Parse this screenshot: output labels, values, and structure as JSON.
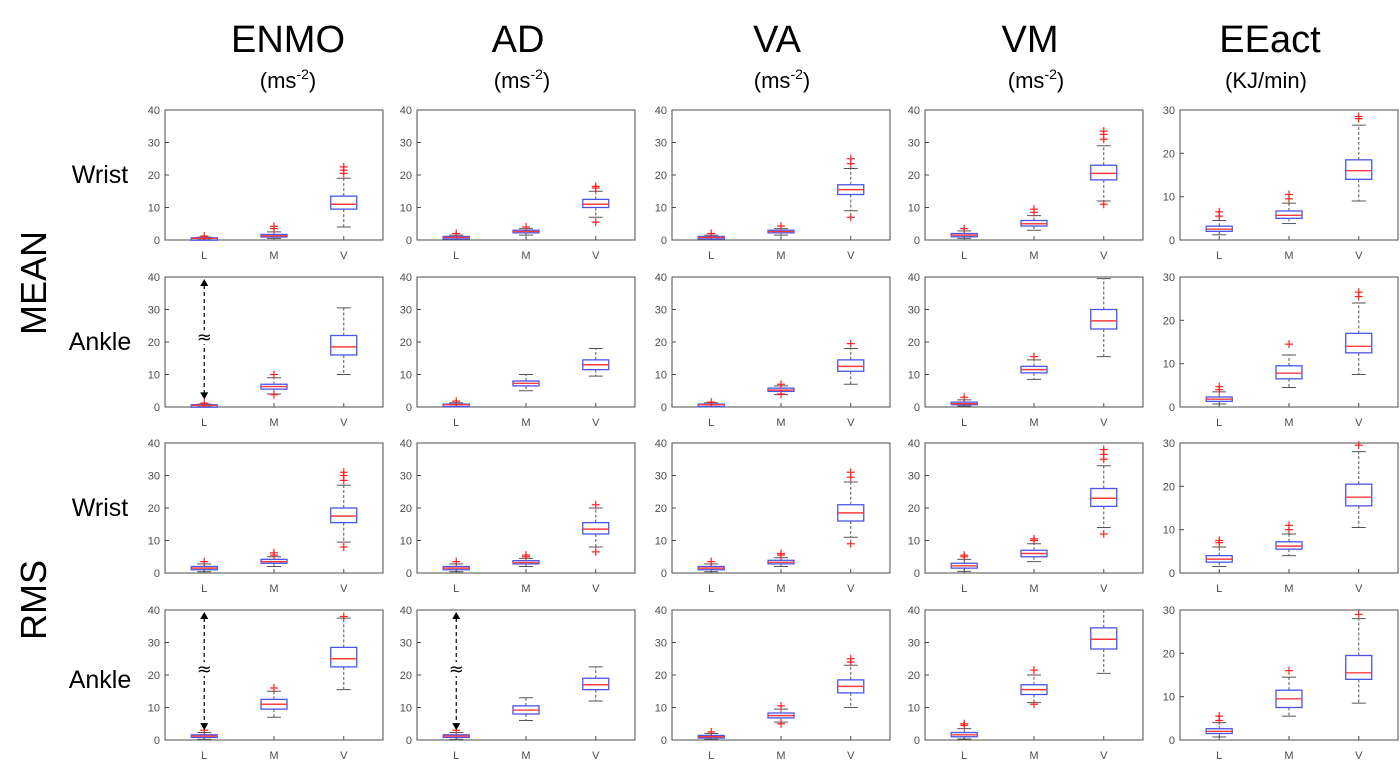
{
  "columns": [
    {
      "title": "ENMO",
      "unit_base": "(ms",
      "unit_sup": "-2",
      "unit_end": ")"
    },
    {
      "title": "AD",
      "unit_base": "(ms",
      "unit_sup": "-2",
      "unit_end": ")"
    },
    {
      "title": "VA",
      "unit_base": "(ms",
      "unit_sup": "-2",
      "unit_end": ")"
    },
    {
      "title": "VM",
      "unit_base": "(ms",
      "unit_sup": "-2",
      "unit_end": ")"
    },
    {
      "title": "EEact",
      "unit_base": "(KJ/min)",
      "unit_sup": "",
      "unit_end": ""
    }
  ],
  "groups": [
    "MEAN",
    "RMS"
  ],
  "rows": [
    "Wrist",
    "Ankle",
    "Wrist",
    "Ankle"
  ],
  "annotation_symbol": "≈",
  "colors": {
    "box": "#4a55e8",
    "median": "#ff3b3b",
    "outlier": "#ff2020",
    "whisker": "#555555"
  },
  "chart_data": {
    "type": "boxplot",
    "categories": [
      "L",
      "M",
      "V"
    ],
    "ylim_by_column": [
      [
        0,
        40
      ],
      [
        0,
        40
      ],
      [
        0,
        40
      ],
      [
        0,
        40
      ],
      [
        0,
        30
      ]
    ],
    "yticks_by_column": [
      [
        0,
        10,
        20,
        30,
        40
      ],
      [
        0,
        10,
        20,
        30,
        40
      ],
      [
        0,
        10,
        20,
        30,
        40
      ],
      [
        0,
        10,
        20,
        30,
        40
      ],
      [
        0,
        10,
        20,
        30
      ]
    ],
    "panels": [
      [
        {
          "boxes": [
            {
              "q1": 0.3,
              "med": 0.5,
              "q3": 0.7,
              "lo": 0.1,
              "hi": 0.9,
              "out": [
                1.2
              ]
            },
            {
              "q1": 1.0,
              "med": 1.3,
              "q3": 1.7,
              "lo": 0.5,
              "hi": 2.5,
              "out": [
                3.5,
                4.2
              ]
            },
            {
              "q1": 9.5,
              "med": 11.0,
              "q3": 13.5,
              "lo": 4.0,
              "hi": 19.0,
              "out": [
                20.5,
                21.5,
                22.5
              ]
            }
          ]
        },
        {
          "boxes": [
            {
              "q1": 0.5,
              "med": 0.8,
              "q3": 1.1,
              "lo": 0.2,
              "hi": 1.5,
              "out": [
                2.0
              ]
            },
            {
              "q1": 2.2,
              "med": 2.6,
              "q3": 3.0,
              "lo": 1.5,
              "hi": 3.5,
              "out": [
                4.0
              ]
            },
            {
              "q1": 10.0,
              "med": 11.0,
              "q3": 12.5,
              "lo": 7.0,
              "hi": 15.0,
              "out": [
                5.5,
                16.0,
                16.5
              ]
            }
          ]
        },
        {
          "boxes": [
            {
              "q1": 0.5,
              "med": 0.8,
              "q3": 1.1,
              "lo": 0.2,
              "hi": 1.5,
              "out": [
                2.0
              ]
            },
            {
              "q1": 2.2,
              "med": 2.6,
              "q3": 3.0,
              "lo": 1.5,
              "hi": 3.5,
              "out": [
                4.3
              ]
            },
            {
              "q1": 14.0,
              "med": 15.5,
              "q3": 17.0,
              "lo": 9.0,
              "hi": 22.0,
              "out": [
                7.0,
                23.5,
                25.0
              ]
            }
          ]
        },
        {
          "boxes": [
            {
              "q1": 1.0,
              "med": 1.5,
              "q3": 2.0,
              "lo": 0.5,
              "hi": 2.8,
              "out": [
                3.5
              ]
            },
            {
              "q1": 4.3,
              "med": 5.0,
              "q3": 6.0,
              "lo": 3.0,
              "hi": 7.5,
              "out": [
                8.5,
                9.5
              ]
            },
            {
              "q1": 18.5,
              "med": 20.5,
              "q3": 23.0,
              "lo": 12.0,
              "hi": 29.0,
              "out": [
                11.0,
                31.0,
                32.5,
                33.5
              ]
            }
          ]
        },
        {
          "boxes": [
            {
              "q1": 2.0,
              "med": 2.5,
              "q3": 3.2,
              "lo": 1.2,
              "hi": 4.5,
              "out": [
                5.5,
                6.5
              ]
            },
            {
              "q1": 5.0,
              "med": 5.7,
              "q3": 6.7,
              "lo": 3.8,
              "hi": 8.5,
              "out": [
                9.5,
                10.5
              ]
            },
            {
              "q1": 14.0,
              "med": 16.0,
              "q3": 18.5,
              "lo": 9.0,
              "hi": 26.5,
              "out": [
                28.0,
                28.5
              ]
            }
          ]
        }
      ],
      [
        {
          "boxes": [
            {
              "q1": 0.3,
              "med": 0.5,
              "q3": 0.7,
              "lo": 0.1,
              "hi": 0.9,
              "out": [
                1.2
              ]
            },
            {
              "q1": 5.5,
              "med": 6.3,
              "q3": 7.0,
              "lo": 4.0,
              "hi": 9.0,
              "out": [
                3.8,
                10.0
              ]
            },
            {
              "q1": 16.0,
              "med": 18.5,
              "q3": 22.0,
              "lo": 10.0,
              "hi": 30.5,
              "out": []
            }
          ]
        },
        {
          "boxes": [
            {
              "q1": 0.5,
              "med": 0.7,
              "q3": 0.9,
              "lo": 0.2,
              "hi": 1.3,
              "out": [
                1.8
              ]
            },
            {
              "q1": 6.5,
              "med": 7.3,
              "q3": 8.0,
              "lo": 5.0,
              "hi": 10.0,
              "out": []
            },
            {
              "q1": 11.5,
              "med": 13.0,
              "q3": 14.5,
              "lo": 9.5,
              "hi": 18.0,
              "out": []
            }
          ]
        },
        {
          "boxes": [
            {
              "q1": 0.5,
              "med": 0.7,
              "q3": 0.9,
              "lo": 0.2,
              "hi": 1.3,
              "out": [
                1.5
              ]
            },
            {
              "q1": 4.8,
              "med": 5.2,
              "q3": 5.8,
              "lo": 3.8,
              "hi": 6.5,
              "out": [
                4.0,
                7.0
              ]
            },
            {
              "q1": 11.0,
              "med": 12.5,
              "q3": 14.5,
              "lo": 7.0,
              "hi": 18.0,
              "out": [
                19.5
              ]
            }
          ]
        },
        {
          "boxes": [
            {
              "q1": 0.7,
              "med": 1.0,
              "q3": 1.5,
              "lo": 0.3,
              "hi": 2.2,
              "out": [
                3.0
              ]
            },
            {
              "q1": 10.5,
              "med": 11.5,
              "q3": 12.5,
              "lo": 8.5,
              "hi": 14.5,
              "out": [
                15.5
              ]
            },
            {
              "q1": 24.0,
              "med": 26.5,
              "q3": 30.0,
              "lo": 15.5,
              "hi": 39.5,
              "out": []
            }
          ]
        },
        {
          "boxes": [
            {
              "q1": 1.3,
              "med": 1.8,
              "q3": 2.3,
              "lo": 0.7,
              "hi": 3.5,
              "out": [
                4.0,
                4.7
              ]
            },
            {
              "q1": 6.5,
              "med": 7.8,
              "q3": 9.5,
              "lo": 4.5,
              "hi": 12.0,
              "out": [
                14.5
              ]
            },
            {
              "q1": 12.5,
              "med": 14.0,
              "q3": 17.0,
              "lo": 7.5,
              "hi": 24.0,
              "out": [
                25.5,
                26.5
              ]
            }
          ]
        }
      ],
      [
        {
          "boxes": [
            {
              "q1": 1.0,
              "med": 1.5,
              "q3": 2.0,
              "lo": 0.4,
              "hi": 2.8,
              "out": [
                3.5
              ]
            },
            {
              "q1": 3.0,
              "med": 3.5,
              "q3": 4.2,
              "lo": 2.0,
              "hi": 5.0,
              "out": [
                5.5,
                6.2
              ]
            },
            {
              "q1": 15.5,
              "med": 17.5,
              "q3": 20.0,
              "lo": 9.5,
              "hi": 27.0,
              "out": [
                8.0,
                28.5,
                30.0,
                31.0
              ]
            }
          ]
        },
        {
          "boxes": [
            {
              "q1": 1.0,
              "med": 1.5,
              "q3": 2.0,
              "lo": 0.4,
              "hi": 2.8,
              "out": [
                3.5
              ]
            },
            {
              "q1": 2.8,
              "med": 3.2,
              "q3": 3.8,
              "lo": 2.0,
              "hi": 4.5,
              "out": [
                5.0,
                5.5
              ]
            },
            {
              "q1": 12.0,
              "med": 13.5,
              "q3": 15.5,
              "lo": 8.0,
              "hi": 20.0,
              "out": [
                6.5,
                21.0
              ]
            }
          ]
        },
        {
          "boxes": [
            {
              "q1": 1.0,
              "med": 1.5,
              "q3": 2.0,
              "lo": 0.4,
              "hi": 2.8,
              "out": [
                3.5
              ]
            },
            {
              "q1": 2.8,
              "med": 3.3,
              "q3": 3.9,
              "lo": 2.0,
              "hi": 4.7,
              "out": [
                5.5,
                6.0
              ]
            },
            {
              "q1": 16.0,
              "med": 18.5,
              "q3": 21.0,
              "lo": 11.0,
              "hi": 28.0,
              "out": [
                9.0,
                29.5,
                31.0
              ]
            }
          ]
        },
        {
          "boxes": [
            {
              "q1": 1.5,
              "med": 2.2,
              "q3": 3.0,
              "lo": 0.5,
              "hi": 4.2,
              "out": [
                5.0,
                5.5
              ]
            },
            {
              "q1": 5.0,
              "med": 6.0,
              "q3": 7.0,
              "lo": 3.5,
              "hi": 9.0,
              "out": [
                10.0,
                10.5
              ]
            },
            {
              "q1": 20.5,
              "med": 23.0,
              "q3": 26.0,
              "lo": 14.0,
              "hi": 33.0,
              "out": [
                12.0,
                35.0,
                36.5,
                38.0
              ]
            }
          ]
        },
        {
          "boxes": [
            {
              "q1": 2.5,
              "med": 3.2,
              "q3": 4.0,
              "lo": 1.5,
              "hi": 6.0,
              "out": [
                7.0,
                7.5
              ]
            },
            {
              "q1": 5.5,
              "med": 6.2,
              "q3": 7.2,
              "lo": 4.0,
              "hi": 9.0,
              "out": [
                10.0,
                11.0
              ]
            },
            {
              "q1": 15.5,
              "med": 17.5,
              "q3": 20.5,
              "lo": 10.5,
              "hi": 28.0,
              "out": [
                29.5
              ]
            }
          ]
        }
      ],
      [
        {
          "boxes": [
            {
              "q1": 0.8,
              "med": 1.2,
              "q3": 1.6,
              "lo": 0.2,
              "hi": 2.3,
              "out": [
                3.0
              ]
            },
            {
              "q1": 9.5,
              "med": 11.0,
              "q3": 12.5,
              "lo": 7.0,
              "hi": 15.0,
              "out": [
                16.0
              ]
            },
            {
              "q1": 22.5,
              "med": 25.0,
              "q3": 28.5,
              "lo": 15.5,
              "hi": 37.5,
              "out": [
                38.0
              ]
            }
          ]
        },
        {
          "boxes": [
            {
              "q1": 0.8,
              "med": 1.2,
              "q3": 1.6,
              "lo": 0.2,
              "hi": 2.3,
              "out": [
                3.0
              ]
            },
            {
              "q1": 8.0,
              "med": 9.2,
              "q3": 10.5,
              "lo": 6.0,
              "hi": 13.0,
              "out": []
            },
            {
              "q1": 15.5,
              "med": 17.0,
              "q3": 19.0,
              "lo": 12.0,
              "hi": 22.5,
              "out": []
            }
          ]
        },
        {
          "boxes": [
            {
              "q1": 0.6,
              "med": 1.0,
              "q3": 1.4,
              "lo": 0.2,
              "hi": 2.0,
              "out": [
                2.5
              ]
            },
            {
              "q1": 6.8,
              "med": 7.5,
              "q3": 8.3,
              "lo": 5.5,
              "hi": 9.5,
              "out": [
                5.0,
                10.5
              ]
            },
            {
              "q1": 14.5,
              "med": 16.5,
              "q3": 18.5,
              "lo": 10.0,
              "hi": 23.0,
              "out": [
                24.0,
                25.0
              ]
            }
          ]
        },
        {
          "boxes": [
            {
              "q1": 1.0,
              "med": 1.6,
              "q3": 2.3,
              "lo": 0.3,
              "hi": 3.5,
              "out": [
                4.5,
                5.0
              ]
            },
            {
              "q1": 14.0,
              "med": 15.5,
              "q3": 17.0,
              "lo": 11.5,
              "hi": 20.0,
              "out": [
                11.0,
                21.5
              ]
            },
            {
              "q1": 28.0,
              "med": 31.0,
              "q3": 34.5,
              "lo": 20.5,
              "hi": 40.0,
              "out": []
            }
          ]
        },
        {
          "boxes": [
            {
              "q1": 1.5,
              "med": 2.0,
              "q3": 2.6,
              "lo": 0.7,
              "hi": 4.0,
              "out": [
                4.5,
                5.5
              ]
            },
            {
              "q1": 7.5,
              "med": 9.5,
              "q3": 11.5,
              "lo": 5.5,
              "hi": 14.5,
              "out": [
                16.0
              ]
            },
            {
              "q1": 14.0,
              "med": 15.5,
              "q3": 19.5,
              "lo": 8.5,
              "hi": 28.0,
              "out": [
                29.0
              ]
            }
          ]
        }
      ]
    ],
    "annotations": [
      {
        "row": 1,
        "col": 0,
        "from": 0.5,
        "to": 40,
        "label": "≈"
      },
      {
        "row": 3,
        "col": 0,
        "from": 1.2,
        "to": 40,
        "label": "≈"
      },
      {
        "row": 3,
        "col": 1,
        "from": 1.2,
        "to": 40,
        "label": "≈"
      }
    ]
  }
}
